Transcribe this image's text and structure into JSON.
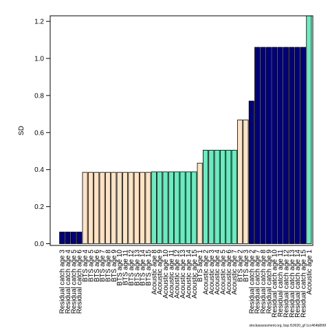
{
  "chart_data": {
    "type": "bar",
    "ylabel": "SD",
    "ylim": [
      0,
      1.23
    ],
    "yticks": [
      "0.0",
      "0.2",
      "0.4",
      "0.6",
      "0.8",
      "1.0",
      "1.2"
    ],
    "ytick_values": [
      0.0,
      0.2,
      0.4,
      0.6,
      0.8,
      1.0,
      1.2
    ],
    "colors": {
      "Residual catch": "#000080",
      "BTS": "#FFE4C4",
      "Acoustic": "#66EEC0"
    },
    "categories": [
      "Residual catch age 3",
      "Residual catch age 4",
      "Residual catch age 5",
      "Residual catch age 6",
      "BTS age 4",
      "BTS age 5",
      "BTS age 6",
      "BTS age 7",
      "BTS age 8",
      "BTS age 9",
      "BTS age 10",
      "BTS age 11",
      "BTS age 12",
      "BTS age 13",
      "BTS age 14",
      "BTS age 15",
      "Acoustic age 8",
      "Acoustic age 9",
      "Acoustic age 10",
      "Acoustic age 11",
      "Acoustic age 12",
      "Acoustic age 13",
      "Acoustic age 14",
      "Acoustic age 15",
      "BTS age 1",
      "Acoustic age 2",
      "Acoustic age 3",
      "Acoustic age 4",
      "Acoustic age 5",
      "Acoustic age 6",
      "Acoustic age 7",
      "BTS age 2",
      "BTS age 3",
      "Residual catch age 2",
      "Residual catch age 7",
      "Residual catch age 8",
      "Residual catch age 9",
      "Residual catch age 10",
      "Residual catch age 11",
      "Residual catch age 12",
      "Residual catch age 13",
      "Residual catch age 14",
      "Residual catch age 15",
      "Acoustic age 1"
    ],
    "groups": [
      "Residual catch",
      "Residual catch",
      "Residual catch",
      "Residual catch",
      "BTS",
      "BTS",
      "BTS",
      "BTS",
      "BTS",
      "BTS",
      "BTS",
      "BTS",
      "BTS",
      "BTS",
      "BTS",
      "BTS",
      "Acoustic",
      "Acoustic",
      "Acoustic",
      "Acoustic",
      "Acoustic",
      "Acoustic",
      "Acoustic",
      "Acoustic",
      "BTS",
      "Acoustic",
      "Acoustic",
      "Acoustic",
      "Acoustic",
      "Acoustic",
      "Acoustic",
      "BTS",
      "BTS",
      "Residual catch",
      "Residual catch",
      "Residual catch",
      "Residual catch",
      "Residual catch",
      "Residual catch",
      "Residual catch",
      "Residual catch",
      "Residual catch",
      "Residual catch",
      "Acoustic"
    ],
    "values": [
      0.063,
      0.063,
      0.063,
      0.063,
      0.385,
      0.385,
      0.385,
      0.385,
      0.385,
      0.385,
      0.385,
      0.385,
      0.385,
      0.385,
      0.385,
      0.385,
      0.388,
      0.388,
      0.388,
      0.388,
      0.388,
      0.388,
      0.388,
      0.388,
      0.435,
      0.505,
      0.505,
      0.505,
      0.505,
      0.505,
      0.505,
      0.668,
      0.668,
      0.77,
      1.06,
      1.06,
      1.06,
      1.06,
      1.06,
      1.06,
      1.06,
      1.06,
      1.06,
      1.23
    ]
  },
  "footnote": "stockassessment.org, bsp.f10020_gf 1cc464b806f"
}
